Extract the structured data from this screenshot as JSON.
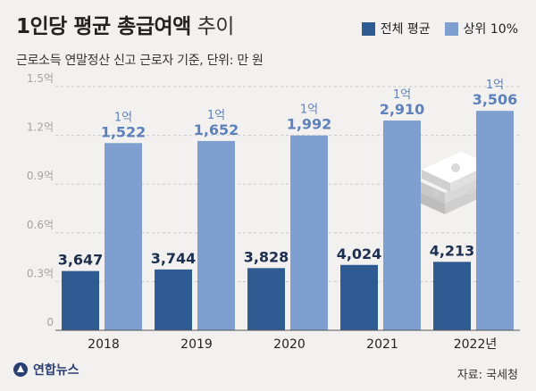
{
  "header": {
    "title_bold": "1인당 평균 총급여액",
    "title_light": "추이",
    "subtitle": "근로소득 연말정산 신고 근로자 기준, 단위: 만 원"
  },
  "footer": {
    "logo_text": "연합뉴스",
    "source": "자료: 국세청"
  },
  "chart_data": {
    "type": "bar",
    "title": "1인당 평균 총급여액 추이",
    "categories": [
      "2018",
      "2019",
      "2020",
      "2021",
      "2022년"
    ],
    "ylim": [
      0,
      15000
    ],
    "yticks": [
      {
        "value": 0,
        "label": "0"
      },
      {
        "value": 3000,
        "label": "0.3억"
      },
      {
        "value": 6000,
        "label": "0.6억"
      },
      {
        "value": 9000,
        "label": "0.9억"
      },
      {
        "value": 12000,
        "label": "1.2억"
      },
      {
        "value": 15000,
        "label": "1.5억"
      }
    ],
    "grid": true,
    "legend_position": "top-right",
    "series": [
      {
        "name": "전체 평균",
        "color": "#2f5b93",
        "values": [
          3647,
          3744,
          3828,
          4024,
          4213
        ],
        "labels": [
          {
            "top": "",
            "bottom": "3,647"
          },
          {
            "top": "",
            "bottom": "3,744"
          },
          {
            "top": "",
            "bottom": "3,828"
          },
          {
            "top": "",
            "bottom": "4,024"
          },
          {
            "top": "",
            "bottom": "4,213"
          }
        ],
        "label_color": "#1c2f50"
      },
      {
        "name": "상위 10%",
        "color": "#7e9fcf",
        "values": [
          11522,
          11652,
          11992,
          12910,
          13506
        ],
        "labels": [
          {
            "top": "1억",
            "bottom": "1,522"
          },
          {
            "top": "1억",
            "bottom": "1,652"
          },
          {
            "top": "1억",
            "bottom": "1,992"
          },
          {
            "top": "1억",
            "bottom": "2,910"
          },
          {
            "top": "1억",
            "bottom": "3,506"
          }
        ],
        "label_color": "#5d81bd"
      }
    ]
  }
}
